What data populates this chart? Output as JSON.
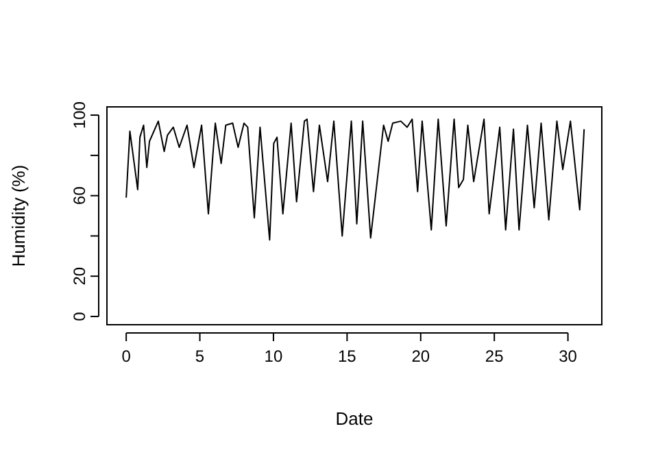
{
  "chart_data": {
    "type": "line",
    "xlabel": "Date",
    "ylabel": "Humidity (%)",
    "xlim": [
      -1.31,
      32.3
    ],
    "xticks": [
      0,
      5,
      10,
      15,
      20,
      25,
      30
    ],
    "ylim": [
      -4.1,
      104.1
    ],
    "yticks": [
      0,
      20,
      {
        "value": 40,
        "label": null
      },
      60,
      {
        "value": 80,
        "label": null
      },
      100
    ],
    "marker": "none",
    "line_style": "solid",
    "series": [
      {
        "color": "#000000",
        "x": [
          0,
          0.25,
          0.47,
          0.78,
          0.93,
          1.18,
          1.4,
          1.58,
          2.18,
          2.58,
          2.8,
          3.2,
          3.6,
          4.13,
          4.6,
          5.12,
          5.58,
          6.05,
          6.45,
          6.76,
          7.23,
          7.6,
          8.0,
          8.25,
          8.7,
          9.09,
          9.74,
          10.02,
          10.24,
          10.64,
          11.2,
          11.57,
          12.1,
          12.28,
          12.72,
          13.12,
          13.68,
          14.1,
          14.67,
          15.29,
          15.66,
          16.06,
          16.6,
          17.48,
          17.79,
          18.1,
          18.65,
          19.08,
          19.42,
          19.79,
          20.1,
          20.72,
          21.19,
          21.73,
          22.27,
          22.58,
          22.9,
          23.2,
          23.6,
          24.3,
          24.65,
          25.37,
          25.77,
          26.3,
          26.68,
          27.25,
          27.71,
          28.18,
          28.7,
          29.25,
          29.65,
          30.17,
          30.8,
          31.1
        ],
        "values": [
          59,
          92,
          80,
          63,
          89,
          95,
          74,
          87,
          97,
          82,
          90,
          94,
          84,
          95,
          74,
          95,
          51,
          96,
          76,
          95,
          96,
          84,
          96,
          94,
          49,
          94,
          38,
          86,
          89,
          51,
          96,
          57,
          97,
          98,
          62,
          95,
          67,
          97,
          40,
          97,
          46,
          97,
          39,
          95,
          87,
          96,
          97,
          94,
          98,
          62,
          97,
          43,
          98,
          45,
          98,
          64,
          68,
          95,
          67,
          98,
          51,
          94,
          43,
          93,
          43,
          95,
          54,
          96,
          48,
          97,
          73,
          97,
          53,
          93
        ]
      }
    ]
  }
}
